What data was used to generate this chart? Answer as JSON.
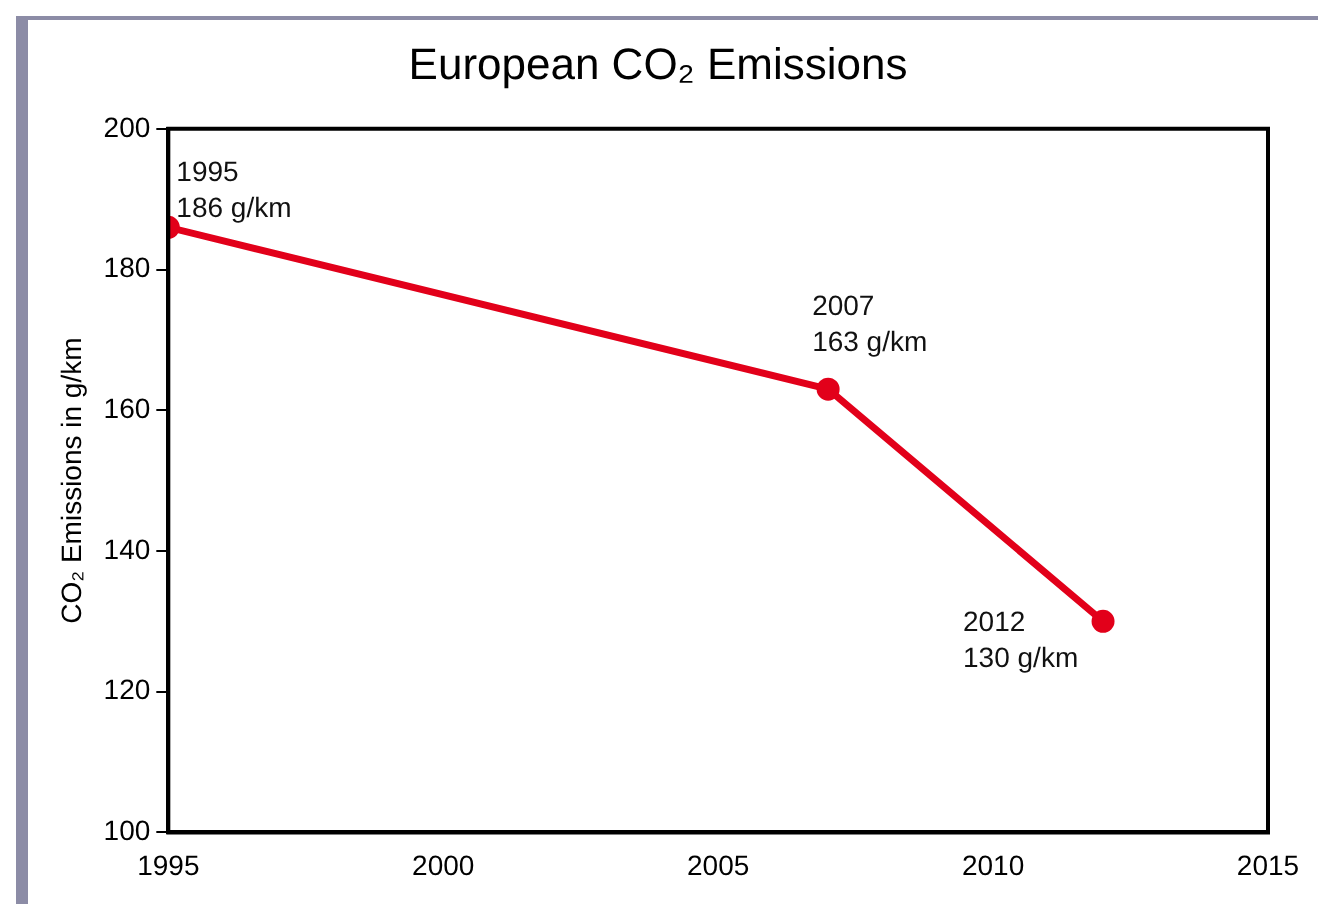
{
  "chart_data": {
    "type": "line",
    "title": "European CO₂ Emissions",
    "ylabel": "CO₂ Emissions in g/km",
    "x": [
      1995,
      2007,
      2012
    ],
    "series": [
      {
        "color": "#e2001a",
        "values": [
          186,
          163,
          130
        ]
      }
    ],
    "xlim": [
      1995,
      2015
    ],
    "xticks": [
      1995,
      2000,
      2005,
      2010,
      2015
    ],
    "ylim": [
      100,
      200
    ],
    "yticks": [
      100,
      120,
      140,
      160,
      180,
      200
    ],
    "grid": false,
    "legend": false,
    "marker": "circle",
    "line_style": "solid",
    "annotations": [
      {
        "text": "1995\n186 g/km",
        "x": 1995,
        "y": 186
      },
      {
        "text": "2007\n163 g/km",
        "x": 2007,
        "y": 163
      },
      {
        "text": "2012\n130 g/km",
        "x": 2012,
        "y": 130
      }
    ]
  }
}
